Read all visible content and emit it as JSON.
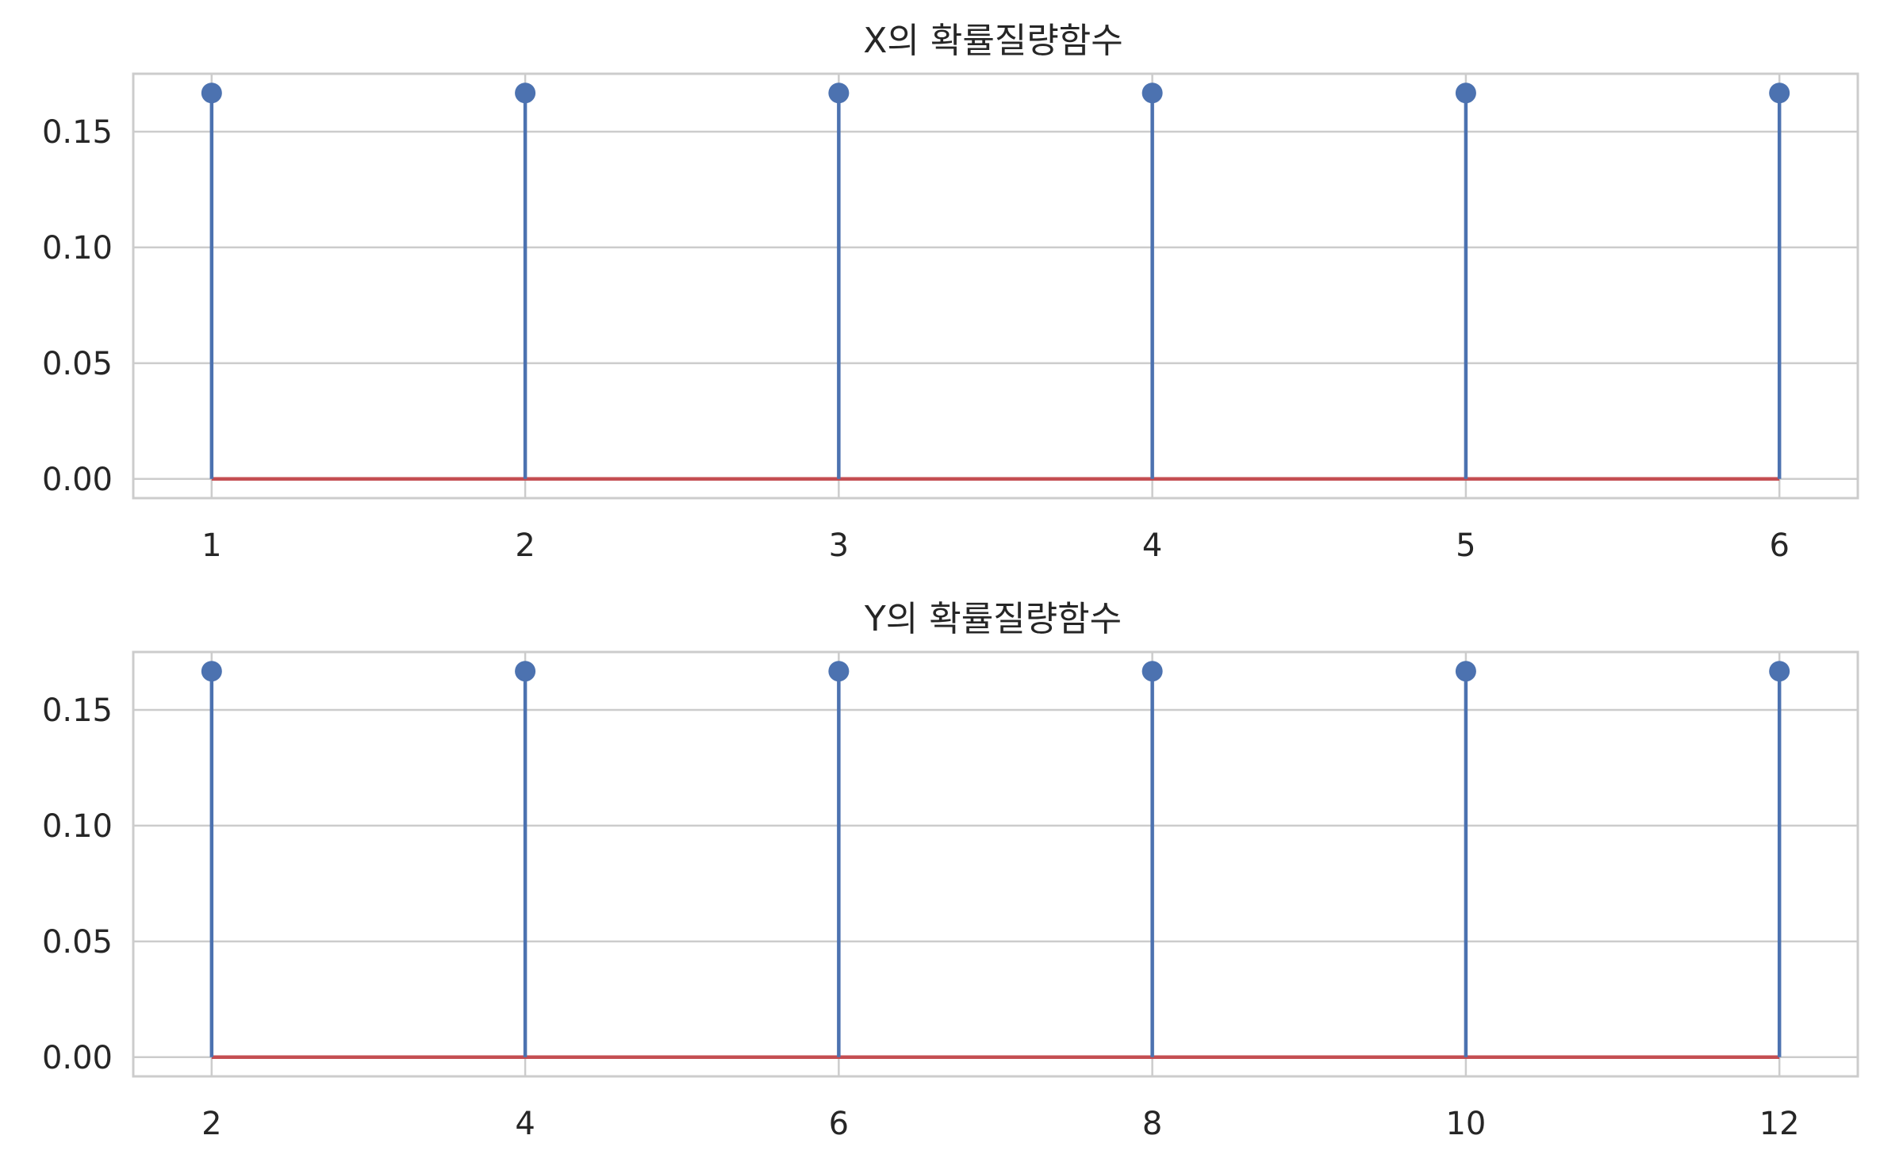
{
  "chart_data": [
    {
      "type": "stem",
      "title": "X의 확률질량함수",
      "x": [
        1,
        2,
        3,
        4,
        5,
        6
      ],
      "y": [
        0.1667,
        0.1667,
        0.1667,
        0.1667,
        0.1667,
        0.1667
      ],
      "x_ticks": [
        1,
        2,
        3,
        4,
        5,
        6
      ],
      "y_ticks": [
        "0.00",
        "0.05",
        "0.10",
        "0.15"
      ],
      "xlim": [
        0.75,
        6.25
      ],
      "ylim": [
        -0.0083,
        0.175
      ],
      "grid": true,
      "stem_color": "#4c72b0",
      "baseline_color": "#c44e52"
    },
    {
      "type": "stem",
      "title": "Y의 확률질량함수",
      "x": [
        2,
        4,
        6,
        8,
        10,
        12
      ],
      "y": [
        0.1667,
        0.1667,
        0.1667,
        0.1667,
        0.1667,
        0.1667
      ],
      "x_ticks": [
        2,
        4,
        6,
        8,
        10,
        12
      ],
      "y_ticks": [
        "0.00",
        "0.05",
        "0.10",
        "0.15"
      ],
      "xlim": [
        1.5,
        12.5
      ],
      "ylim": [
        -0.0083,
        0.175
      ],
      "grid": true,
      "stem_color": "#4c72b0",
      "baseline_color": "#c44e52"
    }
  ]
}
